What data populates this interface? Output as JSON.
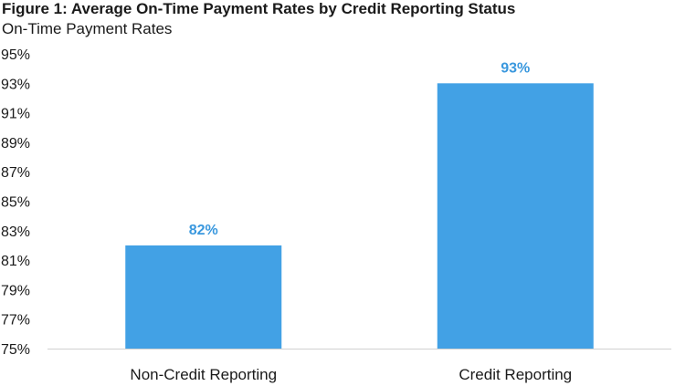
{
  "chart_data": {
    "type": "bar",
    "title": "Figure 1: Average On-Time Payment Rates by Credit Reporting Status",
    "subtitle": "On-Time Payment Rates",
    "categories": [
      "Non-Credit Reporting",
      "Credit Reporting"
    ],
    "values": [
      82,
      93
    ],
    "data_labels": [
      "82%",
      "93%"
    ],
    "ylim": [
      75,
      95
    ],
    "yticks": [
      75,
      77,
      79,
      81,
      83,
      85,
      87,
      89,
      91,
      93,
      95
    ],
    "ytick_labels": [
      "75%",
      "77%",
      "79%",
      "81%",
      "83%",
      "85%",
      "87%",
      "89%",
      "91%",
      "93%",
      "95%"
    ],
    "bar_color": "#42a1e5",
    "label_color": "#3a98de",
    "grid": false,
    "legend": "none"
  }
}
